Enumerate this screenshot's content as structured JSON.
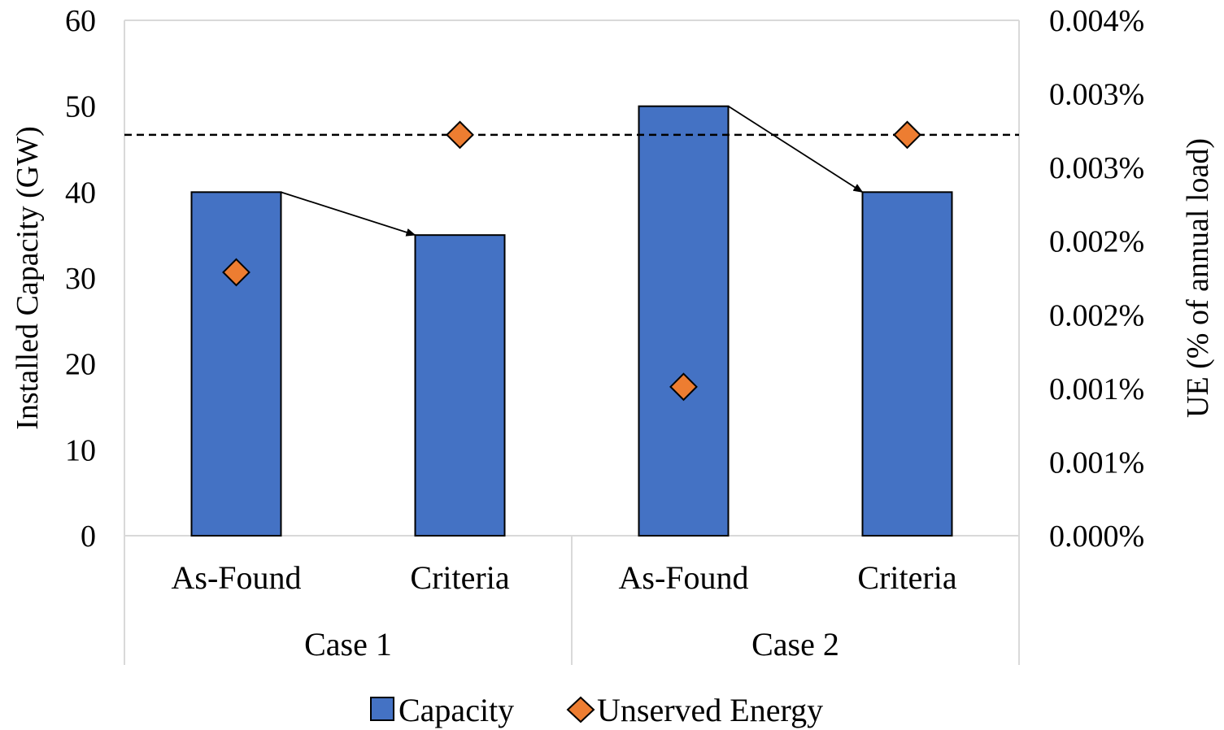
{
  "chart_data": {
    "type": "bar",
    "categories": [
      "As-Found",
      "Criteria",
      "As-Found",
      "Criteria"
    ],
    "groups": [
      {
        "label": "Case 1",
        "span": 2
      },
      {
        "label": "Case 2",
        "span": 2
      }
    ],
    "series": [
      {
        "name": "Capacity",
        "kind": "bar",
        "axis": "left",
        "values": [
          40,
          35,
          50,
          40
        ],
        "color": "#4472C4"
      },
      {
        "name": "Unserved Energy",
        "kind": "scatter",
        "marker": "diamond",
        "axis": "right",
        "values": [
          0.0023,
          0.0035,
          0.0013,
          0.0035
        ],
        "color": "#ED7D31"
      }
    ],
    "ylabel": "Installed Capacity (GW)",
    "ylim": [
      0,
      60
    ],
    "yticks": [
      "0",
      "10",
      "20",
      "30",
      "40",
      "50",
      "60"
    ],
    "y2label": "UE (% of annual load)",
    "y2lim": [
      0,
      0.0045
    ],
    "y2ticks": [
      "0.000%",
      "0.001%",
      "0.001%",
      "0.002%",
      "0.002%",
      "0.003%",
      "0.003%",
      "0.004%"
    ],
    "reference_line": {
      "axis": "right",
      "value": 0.0035,
      "style": "dashed"
    },
    "arrows": [
      {
        "from_category": 0,
        "to_category": 1
      },
      {
        "from_category": 2,
        "to_category": 3
      }
    ],
    "legend": {
      "position": "bottom",
      "entries": [
        "Capacity",
        "Unserved Energy"
      ]
    },
    "grid": false
  }
}
